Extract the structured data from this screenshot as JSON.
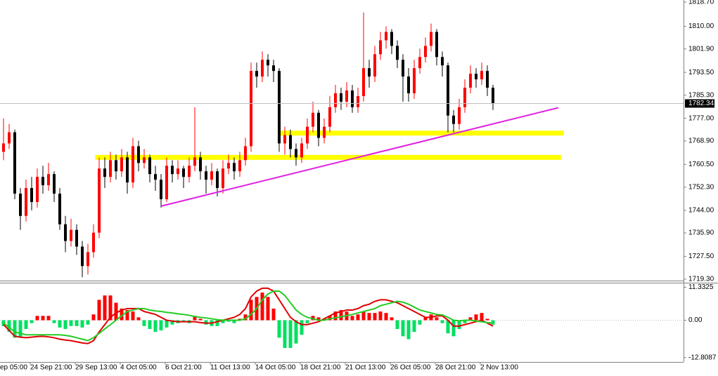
{
  "chart_data": [
    {
      "type": "candlestick",
      "up_color": "#ff0000",
      "down_color": "#000000",
      "ylim": [
        1719.3,
        1818.7
      ],
      "yticks": [
        {
          "value": 1818.7,
          "label": "1818.70"
        },
        {
          "value": 1810,
          "label": "1810.00"
        },
        {
          "value": 1801.9,
          "label": "1801.90"
        },
        {
          "value": 1793.5,
          "label": "1793.50"
        },
        {
          "value": 1785.3,
          "label": "1785.30"
        },
        {
          "value": 1777,
          "label": "1777.00"
        },
        {
          "value": 1768.9,
          "label": "1768.90"
        },
        {
          "value": 1760.5,
          "label": "1760.50"
        },
        {
          "value": 1752.3,
          "label": "1752.30"
        },
        {
          "value": 1744,
          "label": "1744.00"
        },
        {
          "value": 1735.9,
          "label": "1735.90"
        },
        {
          "value": 1727.5,
          "label": "1727.50"
        },
        {
          "value": 1719.3,
          "label": "1719.30"
        }
      ],
      "last_price": 1782.34,
      "xticks": [
        {
          "value": -3,
          "label": "ep 05:00"
        },
        {
          "value": 5,
          "label": "24 Sep 21:00"
        },
        {
          "value": 13,
          "label": "29 Sep 13:00"
        },
        {
          "value": 21,
          "label": "4 Oct 05:00"
        },
        {
          "value": 29,
          "label": "6 Oct 21:00"
        },
        {
          "value": 37,
          "label": "11 Oct 13:00"
        },
        {
          "value": 45,
          "label": "14 Oct 05:00"
        },
        {
          "value": 53,
          "label": "18 Oct 21:00"
        },
        {
          "value": 61,
          "label": "21 Oct 13:00"
        },
        {
          "value": 69,
          "label": "26 Oct 05:00"
        },
        {
          "value": 77,
          "label": "28 Oct 21:00"
        },
        {
          "value": 85,
          "label": "2 Nov 13:00"
        }
      ],
      "zones": [
        {
          "price": 1771.7,
          "from": 49,
          "to": 99.6,
          "color": "#ffff00"
        },
        {
          "price": 1763,
          "from": 16.3,
          "to": 99.1,
          "color": "#ffff00"
        }
      ],
      "trendline": {
        "from": [
          28,
          1745.5
        ],
        "to": [
          98.6,
          1780.8
        ],
        "color": "#e020e0"
      },
      "candles": [
        [
          1765,
          1777,
          1762,
          1768
        ],
        [
          1768,
          1775,
          1766,
          1772
        ],
        [
          1772,
          1773,
          1748,
          1750
        ],
        [
          1750,
          1752,
          1737,
          1742
        ],
        [
          1742,
          1755,
          1740,
          1752
        ],
        [
          1752,
          1756,
          1744,
          1747
        ],
        [
          1747,
          1759,
          1745,
          1756
        ],
        [
          1756,
          1760,
          1750,
          1753
        ],
        [
          1753,
          1761,
          1751,
          1757
        ],
        [
          1757,
          1758,
          1747,
          1750
        ],
        [
          1750,
          1752,
          1737,
          1739
        ],
        [
          1739,
          1742,
          1729,
          1733
        ],
        [
          1733,
          1741,
          1731,
          1737
        ],
        [
          1737,
          1739,
          1728,
          1731
        ],
        [
          1731,
          1733,
          1720,
          1724
        ],
        [
          1724,
          1732,
          1721,
          1729
        ],
        [
          1729,
          1739,
          1727,
          1736
        ],
        [
          1736,
          1763,
          1734,
          1759
        ],
        [
          1759,
          1763,
          1752,
          1756
        ],
        [
          1756,
          1765,
          1754,
          1762
        ],
        [
          1762,
          1764,
          1755,
          1758
        ],
        [
          1758,
          1766,
          1756,
          1763
        ],
        [
          1763,
          1765,
          1750,
          1754
        ],
        [
          1754,
          1770,
          1752,
          1767
        ],
        [
          1767,
          1769,
          1758,
          1761
        ],
        [
          1761,
          1766,
          1759,
          1763
        ],
        [
          1763,
          1764,
          1754,
          1757
        ],
        [
          1757,
          1760,
          1751,
          1755
        ],
        [
          1755,
          1757,
          1745,
          1748
        ],
        [
          1748,
          1763,
          1747,
          1760
        ],
        [
          1760,
          1762,
          1754,
          1757
        ],
        [
          1757,
          1762,
          1755,
          1759
        ],
        [
          1759,
          1760,
          1752,
          1756
        ],
        [
          1756,
          1763,
          1754,
          1760
        ],
        [
          1760,
          1781,
          1758,
          1763
        ],
        [
          1763,
          1765,
          1755,
          1758
        ],
        [
          1758,
          1760,
          1750,
          1755
        ],
        [
          1755,
          1761,
          1753,
          1758
        ],
        [
          1758,
          1759,
          1749,
          1752
        ],
        [
          1752,
          1762,
          1750,
          1759
        ],
        [
          1759,
          1764,
          1757,
          1761
        ],
        [
          1761,
          1763,
          1755,
          1758
        ],
        [
          1758,
          1765,
          1756,
          1762
        ],
        [
          1762,
          1770,
          1760,
          1767
        ],
        [
          1767,
          1797,
          1765,
          1794
        ],
        [
          1794,
          1797,
          1788,
          1792
        ],
        [
          1792,
          1801,
          1790,
          1798
        ],
        [
          1798,
          1800,
          1792,
          1796
        ],
        [
          1796,
          1798,
          1790,
          1794
        ],
        [
          1794,
          1795,
          1765,
          1768
        ],
        [
          1768,
          1774,
          1764,
          1771
        ],
        [
          1771,
          1773,
          1763,
          1766
        ],
        [
          1766,
          1768,
          1760,
          1763
        ],
        [
          1763,
          1770,
          1761,
          1768
        ],
        [
          1768,
          1777,
          1766,
          1774
        ],
        [
          1774,
          1783,
          1772,
          1779
        ],
        [
          1779,
          1780,
          1767,
          1770
        ],
        [
          1770,
          1777,
          1768,
          1774
        ],
        [
          1774,
          1785,
          1772,
          1781
        ],
        [
          1781,
          1789,
          1779,
          1786
        ],
        [
          1786,
          1788,
          1780,
          1783
        ],
        [
          1783,
          1790,
          1781,
          1787
        ],
        [
          1787,
          1789,
          1779,
          1781
        ],
        [
          1781,
          1788,
          1779,
          1785
        ],
        [
          1785,
          1815,
          1783,
          1795
        ],
        [
          1795,
          1798,
          1788,
          1792
        ],
        [
          1792,
          1803,
          1790,
          1800
        ],
        [
          1800,
          1808,
          1798,
          1805
        ],
        [
          1805,
          1810,
          1802,
          1808
        ],
        [
          1808,
          1809,
          1800,
          1803
        ],
        [
          1803,
          1805,
          1795,
          1798
        ],
        [
          1798,
          1800,
          1783,
          1792
        ],
        [
          1792,
          1795,
          1783,
          1786
        ],
        [
          1786,
          1798,
          1784,
          1795
        ],
        [
          1795,
          1802,
          1793,
          1799
        ],
        [
          1799,
          1806,
          1797,
          1803
        ],
        [
          1803,
          1811,
          1801,
          1808
        ],
        [
          1808,
          1809,
          1796,
          1799
        ],
        [
          1799,
          1801,
          1792,
          1796
        ],
        [
          1796,
          1797,
          1772,
          1778
        ],
        [
          1778,
          1780,
          1772,
          1775
        ],
        [
          1775,
          1784,
          1773,
          1781
        ],
        [
          1781,
          1791,
          1779,
          1788
        ],
        [
          1788,
          1796,
          1786,
          1793
        ],
        [
          1793,
          1795,
          1788,
          1791
        ],
        [
          1791,
          1797,
          1789,
          1794
        ],
        [
          1794,
          1796,
          1785,
          1788
        ],
        [
          1788,
          1789,
          1780,
          1782.34
        ]
      ]
    },
    {
      "type": "macd",
      "ylim": [
        -13.6,
        12.4
      ],
      "yticks": [
        11.3325,
        {
          "value": 0,
          "label": "0.00"
        },
        -12.8087
      ],
      "histogram": {
        "pos_color": "#ff0000",
        "neg_color": "#00e060",
        "values": [
          -2,
          -4,
          -6,
          -6,
          -3,
          -1,
          1.5,
          1.5,
          1.5,
          -1,
          -2.5,
          -3,
          -2,
          -2,
          -2.5,
          -1.5,
          2,
          7,
          8.5,
          8.5,
          6,
          4,
          3.5,
          3,
          1,
          -2,
          -3,
          -4,
          -3.5,
          -2.5,
          -1.5,
          -1,
          -0.5,
          -1,
          1.5,
          0.5,
          -1.5,
          -2,
          -2,
          -1,
          -0.5,
          -1,
          0.5,
          2,
          7,
          8,
          9.5,
          8,
          4,
          -6,
          -9.5,
          -9.5,
          -8,
          -5,
          -1,
          1.5,
          1,
          0.5,
          1.5,
          3,
          3.5,
          3,
          1.5,
          2,
          3,
          2.5,
          2.5,
          3,
          2.5,
          1,
          -3,
          -5.5,
          -6.5,
          -4,
          -1.5,
          1,
          2,
          1,
          -1,
          -4.5,
          -5.5,
          -3,
          -1,
          1,
          2,
          2.5,
          0.5,
          -1.5
        ]
      },
      "series": [
        {
          "color": "#e00000",
          "values": [
            -1.5,
            -3.5,
            -5.5,
            -5.8,
            -6,
            -5.8,
            -5.6,
            -5.5,
            -5.7,
            -6,
            -6.5,
            -6.8,
            -7,
            -7.4,
            -7.8,
            -8,
            -7,
            -4,
            -1.5,
            1,
            2.5,
            3.5,
            4,
            4,
            4,
            3,
            2.5,
            2,
            1,
            0,
            -0.3,
            -0.5,
            -0.5,
            -0.5,
            -0.5,
            -0.8,
            -1,
            -1,
            -0.5,
            0,
            0.5,
            1,
            2,
            4,
            8,
            10,
            11,
            11,
            10,
            7,
            4,
            1,
            -0.5,
            -1.5,
            -1.5,
            -1,
            -0.5,
            0.5,
            1.5,
            2.5,
            3,
            3.5,
            3.5,
            4,
            5,
            5.5,
            6.5,
            7,
            7,
            6.5,
            6,
            5,
            4,
            3,
            2,
            1,
            1,
            1.5,
            1.5,
            0,
            -2,
            -2,
            -1.5,
            -1,
            -0.5,
            0,
            -1,
            -2
          ]
        },
        {
          "color": "#22cc22",
          "values": [
            -1,
            -2.5,
            -4,
            -4.5,
            -5,
            -5,
            -5,
            -5,
            -5,
            -5,
            -5,
            -5.2,
            -5.5,
            -6,
            -6.5,
            -7,
            -6,
            -4.5,
            -3,
            -1.5,
            0,
            1.5,
            3,
            3.5,
            4,
            4,
            3.5,
            3.2,
            3,
            2.7,
            2.5,
            2.2,
            2,
            1.7,
            1.3,
            1,
            0.8,
            0.5,
            0.2,
            0,
            0,
            0,
            0,
            0.5,
            2,
            4,
            7,
            9,
            10,
            10,
            8.5,
            6,
            3.5,
            2,
            1,
            0.5,
            0,
            0,
            0.5,
            0.8,
            1.2,
            1.6,
            2,
            2.5,
            3,
            3.5,
            4,
            5,
            5.5,
            6,
            6.5,
            6.2,
            5.5,
            4.5,
            3.5,
            3,
            2.5,
            2,
            1.8,
            1,
            0,
            -0.2,
            0,
            0,
            -0.3,
            -0.5,
            -0.8,
            -1
          ]
        }
      ]
    }
  ]
}
